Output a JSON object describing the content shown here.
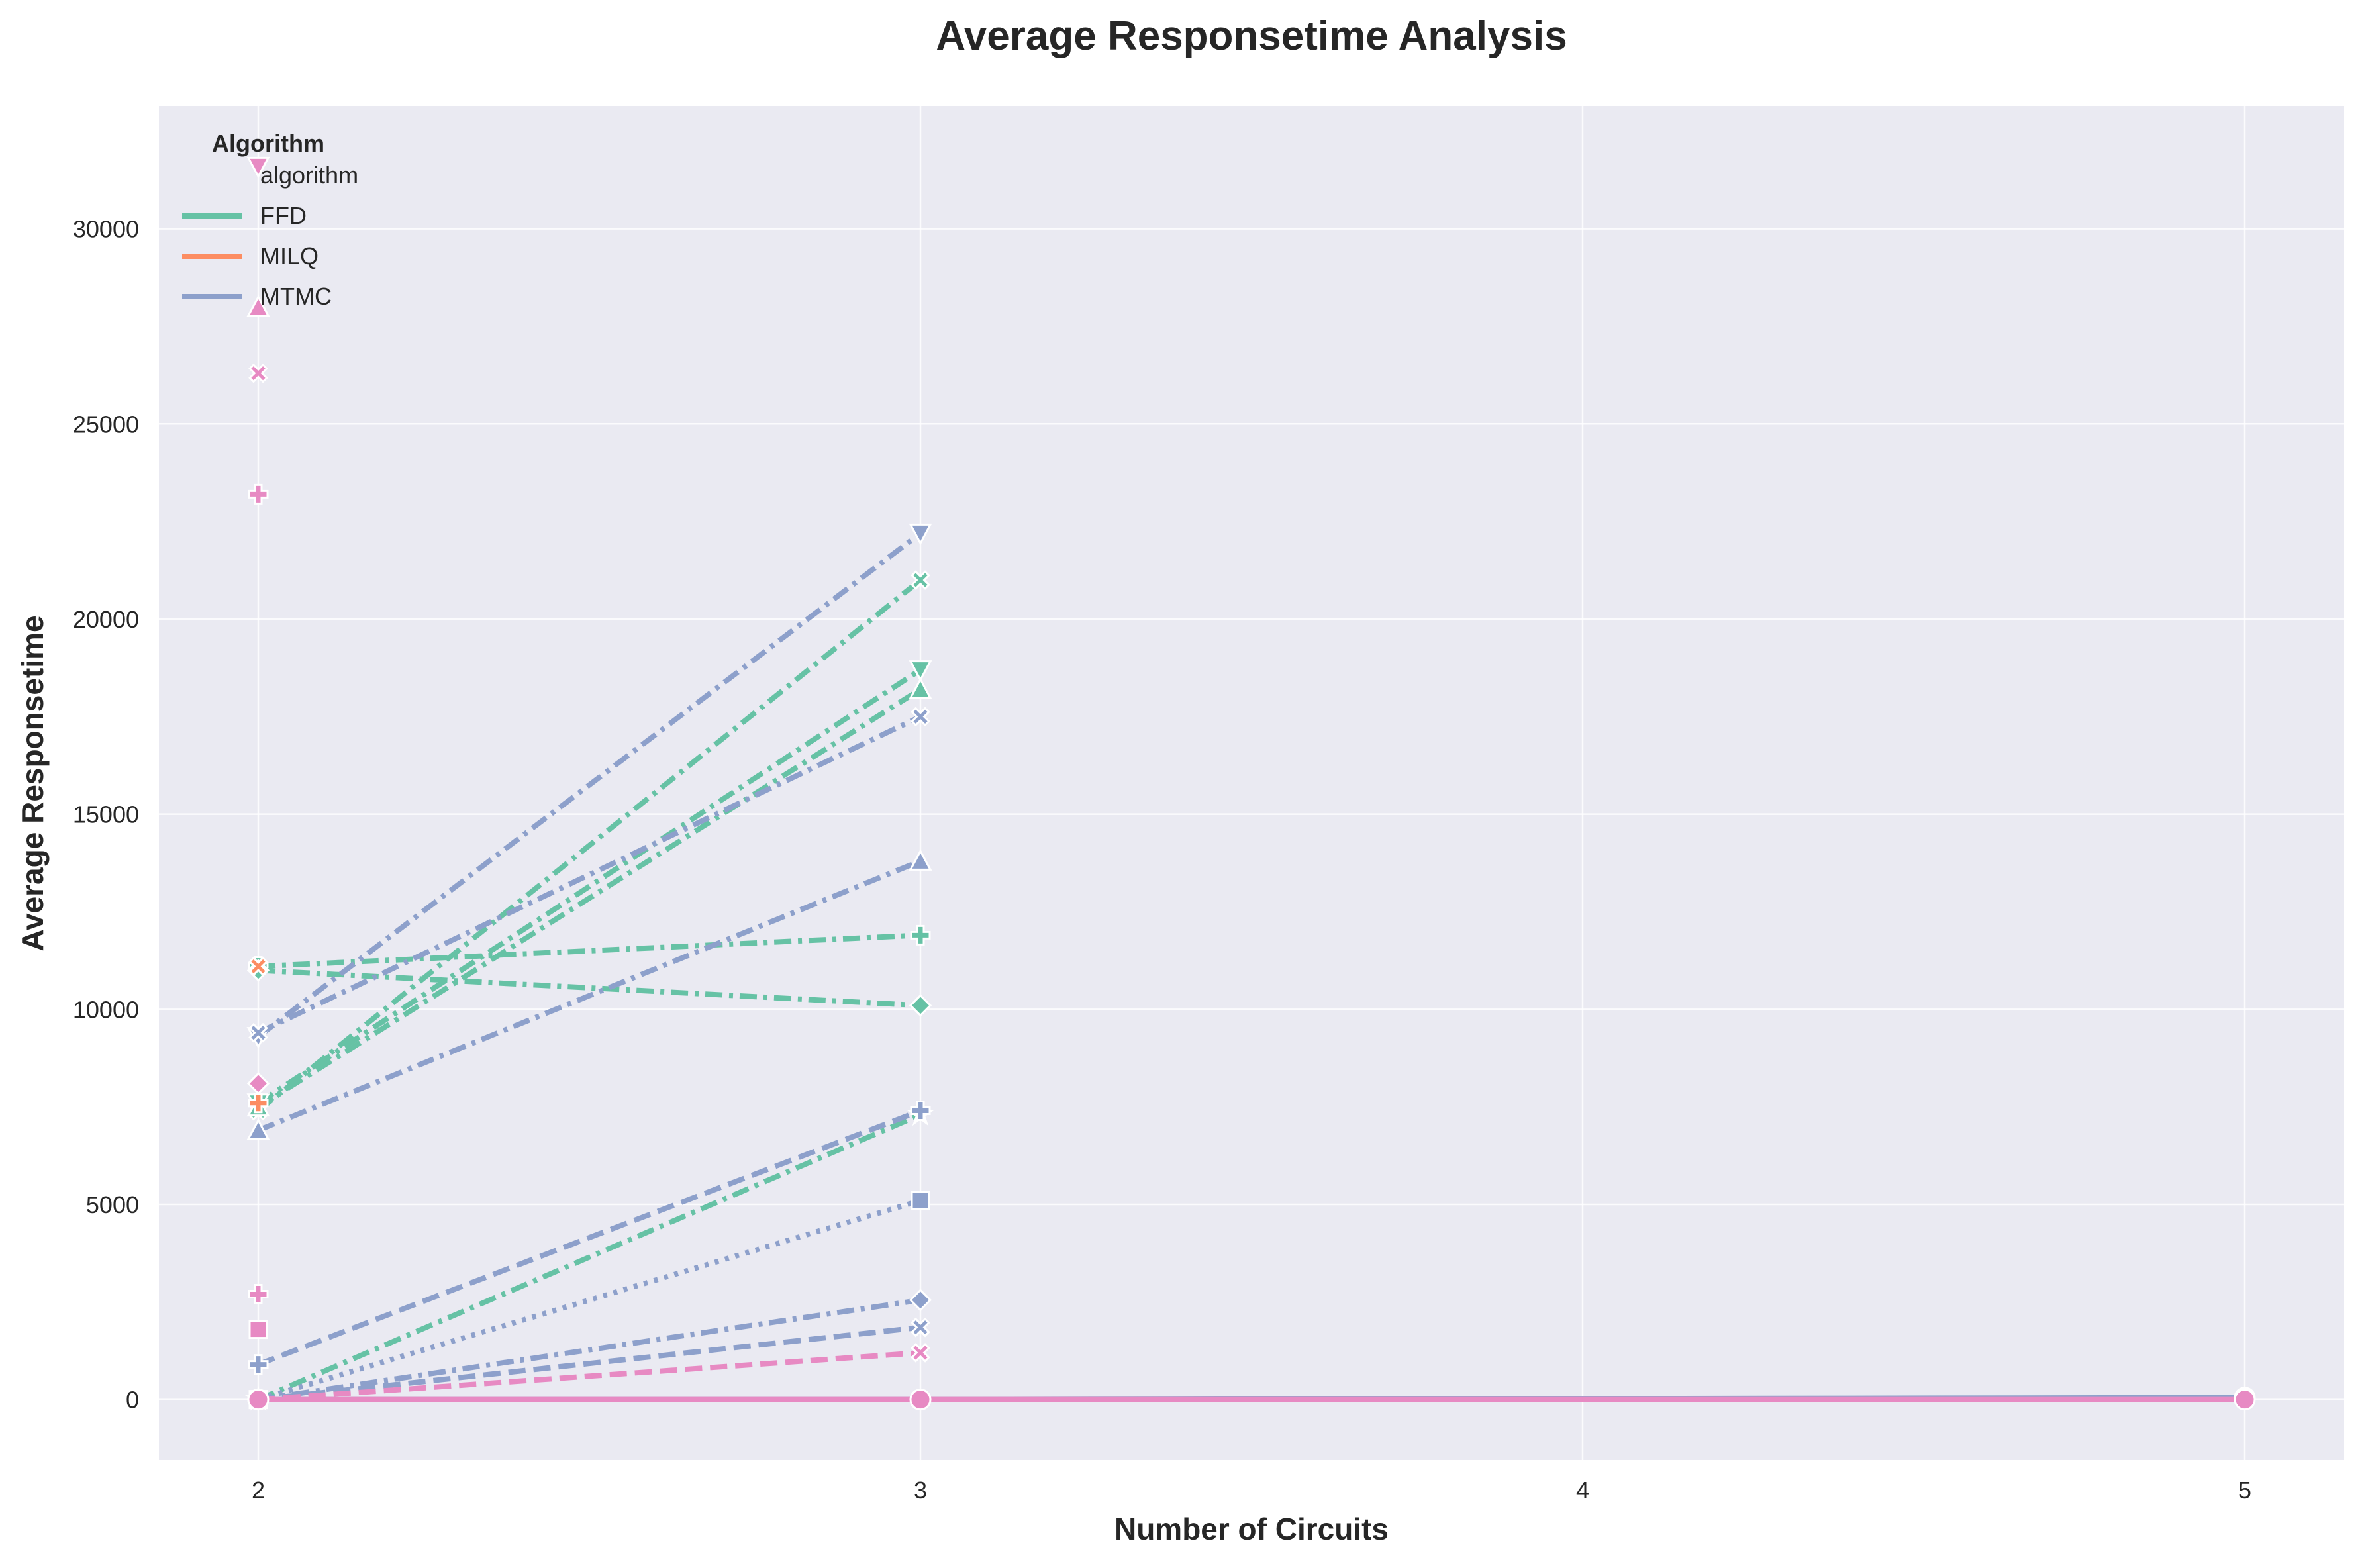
{
  "chart_data": {
    "type": "line",
    "title": "Average Responsetime Analysis",
    "xlabel": "Number of Circuits",
    "ylabel": "Average Responsetime",
    "xlim": [
      1.85,
      5.15
    ],
    "ylim": [
      -1550,
      33150
    ],
    "x_ticks": [
      2,
      3,
      4,
      5
    ],
    "y_ticks": [
      0,
      5000,
      10000,
      15000,
      20000,
      25000,
      30000
    ],
    "grid": true,
    "legend": {
      "position": "top-left",
      "title": "Algorithm",
      "entries": [
        {
          "label": "algorithm",
          "color": null
        },
        {
          "label": "FFD",
          "color": "#66c2a5"
        },
        {
          "label": "MILQ",
          "color": "#fc8d62"
        },
        {
          "label": "MTMC",
          "color": "#8da0cb"
        }
      ]
    },
    "colors": {
      "FFD": "#66c2a5",
      "MILQ": "#fc8d62",
      "MTMC": "#8da0cb",
      "other": "#e78ac3",
      "background": "#eaeaf2",
      "grid": "#ffffff"
    },
    "series": [
      {
        "group": "FFD",
        "dash": "dashdot",
        "marker": "X",
        "x": [
          2,
          3
        ],
        "y": [
          7400,
          21000
        ]
      },
      {
        "group": "FFD",
        "dash": "dashdot",
        "marker": "v",
        "x": [
          2,
          3
        ],
        "y": [
          7600,
          18700
        ]
      },
      {
        "group": "FFD",
        "dash": "dashdot",
        "marker": "^",
        "x": [
          2,
          3
        ],
        "y": [
          7500,
          18200
        ]
      },
      {
        "group": "FFD",
        "dash": "dashdot",
        "marker": "P",
        "x": [
          2,
          3
        ],
        "y": [
          11100,
          11900
        ]
      },
      {
        "group": "FFD",
        "dash": "dashdot",
        "marker": "D",
        "x": [
          2,
          3
        ],
        "y": [
          11000,
          10100
        ]
      },
      {
        "group": "FFD",
        "dash": "dashdot",
        "marker": "*",
        "x": [
          2,
          3
        ],
        "y": [
          0,
          7300
        ]
      },
      {
        "group": "MTMC",
        "dash": "dashdot",
        "marker": "v",
        "x": [
          2,
          3
        ],
        "y": [
          9300,
          22200
        ]
      },
      {
        "group": "MTMC",
        "dash": "dashdot",
        "marker": "X",
        "x": [
          2,
          3
        ],
        "y": [
          9400,
          17500
        ]
      },
      {
        "group": "MTMC",
        "dash": "dashdot",
        "marker": "^",
        "x": [
          2,
          3
        ],
        "y": [
          6900,
          13800
        ]
      },
      {
        "group": "MTMC",
        "dash": "dashed",
        "marker": "P",
        "x": [
          2,
          3
        ],
        "y": [
          900,
          7400
        ]
      },
      {
        "group": "MTMC",
        "dash": "dotted",
        "marker": "s",
        "x": [
          2,
          3
        ],
        "y": [
          0,
          5100
        ]
      },
      {
        "group": "MTMC",
        "dash": "dashdot",
        "marker": "D",
        "x": [
          2,
          3
        ],
        "y": [
          0,
          2550
        ]
      },
      {
        "group": "MTMC",
        "dash": "dashed",
        "marker": "X",
        "x": [
          2,
          3
        ],
        "y": [
          0,
          1850
        ]
      },
      {
        "group": "MTMC",
        "dash": "solid",
        "marker": "o",
        "x": [
          2,
          3,
          5
        ],
        "y": [
          0,
          0,
          50
        ]
      },
      {
        "group": "other",
        "dash": "dashed",
        "marker": "X",
        "x": [
          2,
          3
        ],
        "y": [
          0,
          1200
        ]
      },
      {
        "group": "other",
        "dash": "solid",
        "marker": "o",
        "x": [
          2,
          3,
          5
        ],
        "y": [
          0,
          0,
          0
        ]
      }
    ],
    "isolated_points": [
      {
        "group": "other",
        "marker": "v",
        "x": 2,
        "y": 31600
      },
      {
        "group": "other",
        "marker": "^",
        "x": 2,
        "y": 28000
      },
      {
        "group": "other",
        "marker": "X",
        "x": 2,
        "y": 26300
      },
      {
        "group": "other",
        "marker": "P",
        "x": 2,
        "y": 23200
      },
      {
        "group": "MILQ",
        "marker": "X",
        "x": 2,
        "y": 11100
      },
      {
        "group": "other",
        "marker": "D",
        "x": 2,
        "y": 8100
      },
      {
        "group": "MILQ",
        "marker": "P",
        "x": 2,
        "y": 7600
      },
      {
        "group": "other",
        "marker": "P",
        "x": 2,
        "y": 2700
      },
      {
        "group": "other",
        "marker": "s",
        "x": 2,
        "y": 1800
      }
    ]
  }
}
